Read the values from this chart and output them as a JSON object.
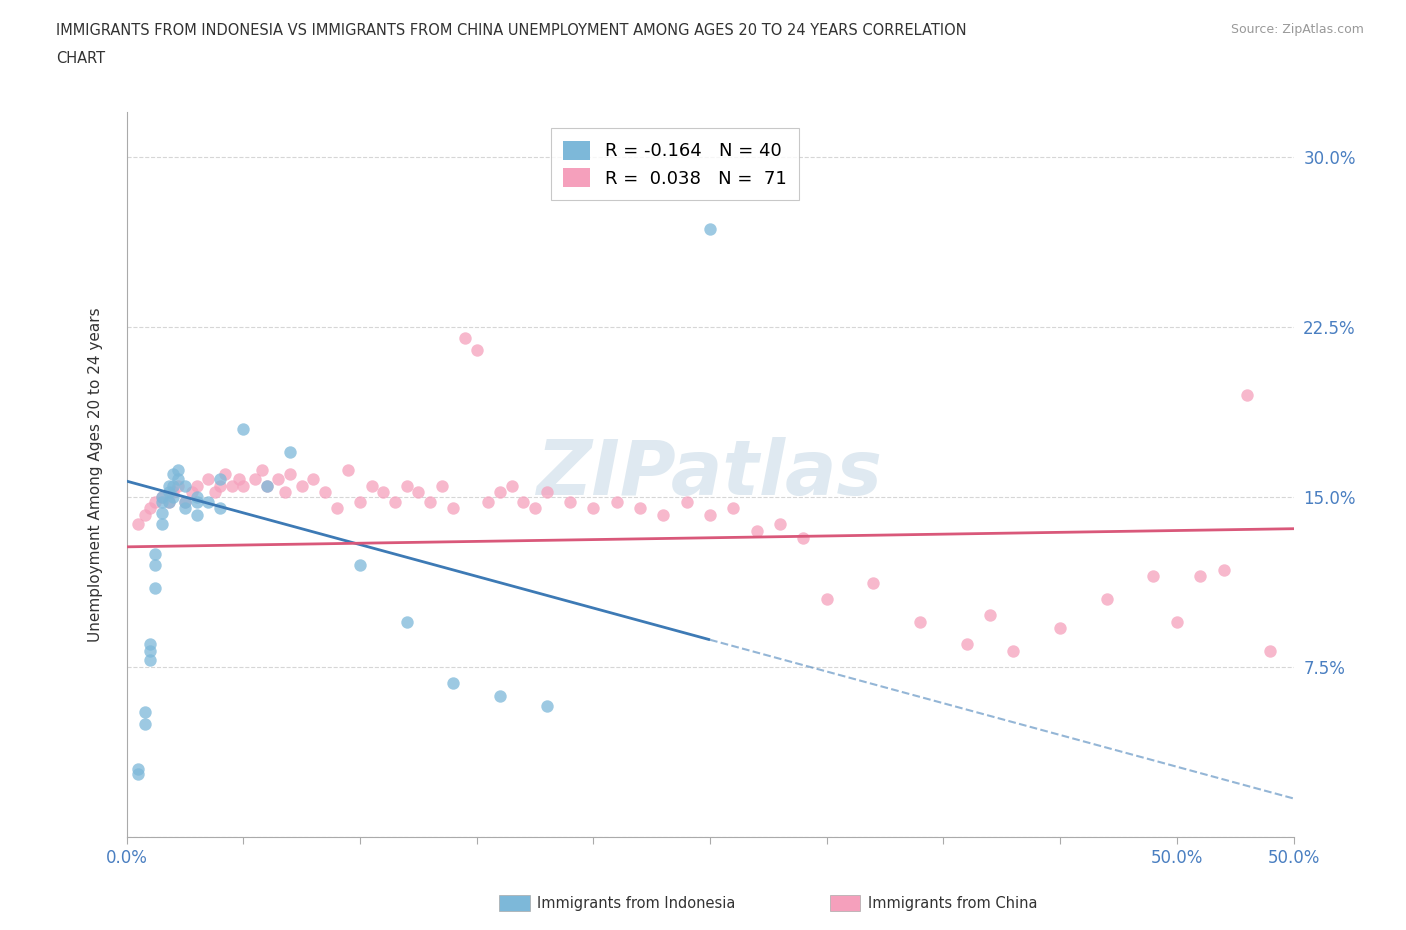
{
  "title_line1": "IMMIGRANTS FROM INDONESIA VS IMMIGRANTS FROM CHINA UNEMPLOYMENT AMONG AGES 20 TO 24 YEARS CORRELATION",
  "title_line2": "CHART",
  "source": "Source: ZipAtlas.com",
  "ylabel": "Unemployment Among Ages 20 to 24 years",
  "xlim": [
    0.0,
    0.5
  ],
  "ylim": [
    0.0,
    0.32
  ],
  "xticks": [
    0.0,
    0.05,
    0.1,
    0.15,
    0.2,
    0.25,
    0.3,
    0.35,
    0.4,
    0.45,
    0.5
  ],
  "xticklabels_show": {
    "0.0": "0.0%",
    "0.5": "50.0%"
  },
  "yticks": [
    0.0,
    0.075,
    0.15,
    0.225,
    0.3
  ],
  "yticklabels": [
    "",
    "7.5%",
    "15.0%",
    "22.5%",
    "30.0%"
  ],
  "legend_entry1": "R = -0.164   N = 40",
  "legend_entry2": "R =  0.038   N =  71",
  "color_indonesia": "#7db8d9",
  "color_china": "#f5a0bc",
  "trendline_indonesia_color": "#3d7ab5",
  "trendline_china_color": "#d9587a",
  "watermark": "ZIPatlas",
  "indonesia_x": [
    0.005,
    0.005,
    0.008,
    0.008,
    0.01,
    0.01,
    0.01,
    0.012,
    0.012,
    0.012,
    0.015,
    0.015,
    0.015,
    0.015,
    0.018,
    0.018,
    0.018,
    0.02,
    0.02,
    0.02,
    0.022,
    0.022,
    0.025,
    0.025,
    0.025,
    0.03,
    0.03,
    0.03,
    0.035,
    0.04,
    0.04,
    0.05,
    0.06,
    0.07,
    0.1,
    0.12,
    0.14,
    0.16,
    0.18,
    0.25
  ],
  "indonesia_y": [
    0.03,
    0.028,
    0.055,
    0.05,
    0.085,
    0.082,
    0.078,
    0.125,
    0.12,
    0.11,
    0.15,
    0.148,
    0.143,
    0.138,
    0.155,
    0.152,
    0.148,
    0.16,
    0.155,
    0.15,
    0.162,
    0.158,
    0.155,
    0.148,
    0.145,
    0.15,
    0.148,
    0.142,
    0.148,
    0.145,
    0.158,
    0.18,
    0.155,
    0.17,
    0.12,
    0.095,
    0.068,
    0.062,
    0.058,
    0.268
  ],
  "china_x": [
    0.005,
    0.008,
    0.01,
    0.012,
    0.015,
    0.018,
    0.02,
    0.022,
    0.025,
    0.028,
    0.03,
    0.035,
    0.038,
    0.04,
    0.042,
    0.045,
    0.048,
    0.05,
    0.055,
    0.058,
    0.06,
    0.065,
    0.068,
    0.07,
    0.075,
    0.08,
    0.085,
    0.09,
    0.095,
    0.1,
    0.105,
    0.11,
    0.115,
    0.12,
    0.125,
    0.13,
    0.135,
    0.14,
    0.145,
    0.15,
    0.155,
    0.16,
    0.165,
    0.17,
    0.175,
    0.18,
    0.19,
    0.2,
    0.21,
    0.22,
    0.23,
    0.24,
    0.25,
    0.26,
    0.27,
    0.28,
    0.29,
    0.3,
    0.32,
    0.34,
    0.36,
    0.37,
    0.38,
    0.4,
    0.42,
    0.44,
    0.45,
    0.46,
    0.47,
    0.48,
    0.49
  ],
  "china_y": [
    0.138,
    0.142,
    0.145,
    0.148,
    0.15,
    0.148,
    0.152,
    0.155,
    0.148,
    0.152,
    0.155,
    0.158,
    0.152,
    0.155,
    0.16,
    0.155,
    0.158,
    0.155,
    0.158,
    0.162,
    0.155,
    0.158,
    0.152,
    0.16,
    0.155,
    0.158,
    0.152,
    0.145,
    0.162,
    0.148,
    0.155,
    0.152,
    0.148,
    0.155,
    0.152,
    0.148,
    0.155,
    0.145,
    0.22,
    0.215,
    0.148,
    0.152,
    0.155,
    0.148,
    0.145,
    0.152,
    0.148,
    0.145,
    0.148,
    0.145,
    0.142,
    0.148,
    0.142,
    0.145,
    0.135,
    0.138,
    0.132,
    0.105,
    0.112,
    0.095,
    0.085,
    0.098,
    0.082,
    0.092,
    0.105,
    0.115,
    0.095,
    0.115,
    0.118,
    0.195,
    0.082
  ]
}
